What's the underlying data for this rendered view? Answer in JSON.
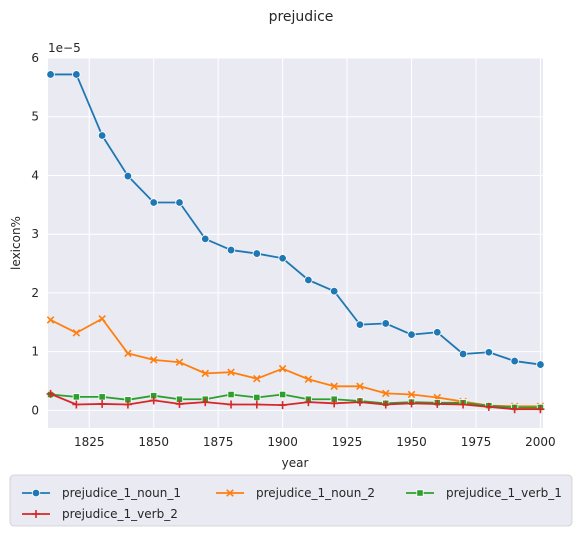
{
  "chart_data": {
    "type": "line",
    "title": "prejudice",
    "xlabel": "year",
    "ylabel": "lexicon%",
    "y_offset_text": "1e−5",
    "xlim": [
      1809,
      2001
    ],
    "ylim": [
      -0.3,
      6.0
    ],
    "x_ticks": [
      1825,
      1850,
      1875,
      1900,
      1925,
      1950,
      1975,
      2000
    ],
    "x_tick_labels": [
      "1825",
      "1850",
      "1875",
      "1900",
      "1925",
      "1950",
      "1975",
      "2000"
    ],
    "y_ticks": [
      0,
      1,
      2,
      3,
      4,
      5,
      6
    ],
    "y_tick_labels": [
      "0",
      "1",
      "2",
      "3",
      "4",
      "5",
      "6"
    ],
    "grid": true,
    "legend_position": "bottom",
    "x": [
      1810,
      1820,
      1830,
      1840,
      1850,
      1860,
      1870,
      1880,
      1890,
      1900,
      1910,
      1920,
      1930,
      1940,
      1950,
      1960,
      1970,
      1980,
      1990,
      2000
    ],
    "series": [
      {
        "name": "prejudice_1_noun_1",
        "color": "#1f77b4",
        "marker": "circle",
        "values": [
          5.72,
          5.72,
          4.68,
          3.99,
          3.54,
          3.54,
          2.92,
          2.73,
          2.67,
          2.59,
          2.22,
          2.03,
          1.46,
          1.48,
          1.29,
          1.33,
          0.96,
          0.99,
          0.84,
          0.78
        ]
      },
      {
        "name": "prejudice_1_noun_2",
        "color": "#ff7f0e",
        "marker": "x",
        "values": [
          1.54,
          1.32,
          1.56,
          0.97,
          0.86,
          0.82,
          0.63,
          0.65,
          0.54,
          0.71,
          0.53,
          0.41,
          0.41,
          0.29,
          0.27,
          0.22,
          0.15,
          0.08,
          0.07,
          0.07
        ]
      },
      {
        "name": "prejudice_1_verb_1",
        "color": "#2ca02c",
        "marker": "square",
        "values": [
          0.27,
          0.23,
          0.23,
          0.18,
          0.25,
          0.19,
          0.19,
          0.27,
          0.22,
          0.27,
          0.19,
          0.19,
          0.16,
          0.12,
          0.14,
          0.13,
          0.13,
          0.08,
          0.05,
          0.05
        ]
      },
      {
        "name": "prejudice_1_verb_2",
        "color": "#d62728",
        "marker": "plus",
        "values": [
          0.28,
          0.1,
          0.11,
          0.1,
          0.17,
          0.11,
          0.14,
          0.1,
          0.1,
          0.09,
          0.14,
          0.12,
          0.14,
          0.1,
          0.12,
          0.11,
          0.1,
          0.06,
          0.02,
          0.02
        ]
      }
    ]
  }
}
